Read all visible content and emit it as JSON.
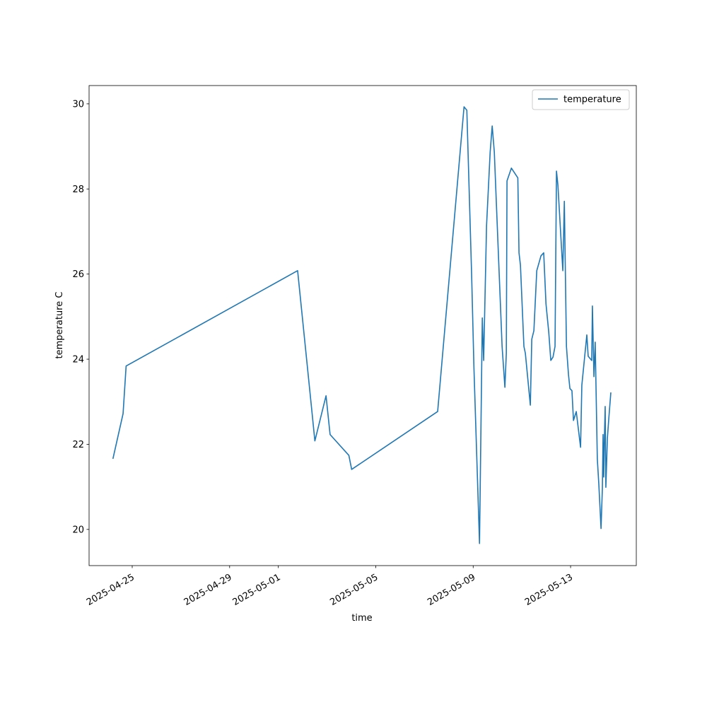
{
  "chart_data": {
    "type": "line",
    "xlabel": "time",
    "ylabel": "temperature C",
    "x": [
      "2025-04-24T05:00",
      "2025-04-24T15:00",
      "2025-04-24T18:00",
      "2025-05-01T19:00",
      "2025-05-02T08:40",
      "2025-05-02T12:00",
      "2025-05-02T23:00",
      "2025-05-03T03:00",
      "2025-05-03T21:30",
      "2025-05-04T00:15",
      "2025-05-07T13:00",
      "2025-05-08T15:00",
      "2025-05-08T17:45",
      "2025-05-08T22:30",
      "2025-05-09T00:45",
      "2025-05-09T06:15",
      "2025-05-09T09:00",
      "2025-05-09T10:20",
      "2025-05-09T13:10",
      "2025-05-09T16:45",
      "2025-05-09T18:45",
      "2025-05-09T20:50",
      "2025-05-10T04:30",
      "2025-05-10T07:15",
      "2025-05-10T08:40",
      "2025-05-10T09:20",
      "2025-05-10T13:40",
      "2025-05-10T20:00",
      "2025-05-10T21:10",
      "2025-05-10T22:35",
      "2025-05-11T02:00",
      "2025-05-11T03:25",
      "2025-05-11T08:20",
      "2025-05-11T09:45",
      "2025-05-11T11:50",
      "2025-05-11T14:40",
      "2025-05-11T18:50",
      "2025-05-11T21:30",
      "2025-05-11T23:45",
      "2025-05-12T02:30",
      "2025-05-12T04:30",
      "2025-05-12T06:40",
      "2025-05-12T08:40",
      "2025-05-12T10:05",
      "2025-05-12T11:30",
      "2025-05-12T16:20",
      "2025-05-12T17:50",
      "2025-05-12T19:55",
      "2025-05-12T21:55",
      "2025-05-12T23:20",
      "2025-05-13T01:20",
      "2025-05-13T02:50",
      "2025-05-13T05:35",
      "2025-05-13T09:50",
      "2025-05-13T11:05",
      "2025-05-13T16:00",
      "2025-05-13T17:20",
      "2025-05-13T20:50",
      "2025-05-13T21:30",
      "2025-05-13T23:00",
      "2025-05-14T00:15",
      "2025-05-14T02:20",
      "2025-05-14T03:50",
      "2025-05-14T06:00",
      "2025-05-14T07:20",
      "2025-05-14T08:00",
      "2025-05-14T08:40",
      "2025-05-14T09:25",
      "2025-05-14T10:05",
      "2025-05-14T10:45",
      "2025-05-14T12:15",
      "2025-05-14T13:40",
      "2025-05-14T15:40"
    ],
    "series": [
      {
        "name": "temperature",
        "color": "#1f77b4",
        "values": [
          21.66,
          22.72,
          23.84,
          26.08,
          22.87,
          22.08,
          23.14,
          22.23,
          21.74,
          21.41,
          22.77,
          29.93,
          29.85,
          25.96,
          23.8,
          19.67,
          24.97,
          23.97,
          27.13,
          28.87,
          29.48,
          28.87,
          24.3,
          23.34,
          24.14,
          28.19,
          28.49,
          28.26,
          26.5,
          26.21,
          24.3,
          24.14,
          22.92,
          24.47,
          24.67,
          26.08,
          26.43,
          26.5,
          25.3,
          24.63,
          23.97,
          24.05,
          24.3,
          28.42,
          28.09,
          26.08,
          27.71,
          24.3,
          23.64,
          23.31,
          23.26,
          22.56,
          22.77,
          21.93,
          23.39,
          24.57,
          24.07,
          23.97,
          25.25,
          23.59,
          24.4,
          21.66,
          21.06,
          20.02,
          20.98,
          22.23,
          21.23,
          22.23,
          22.89,
          20.99,
          22.14,
          22.61,
          23.22
        ]
      }
    ],
    "xlim": [
      "2025-04-23T05:30",
      "2025-05-15T16:45"
    ],
    "xticks": [
      "2025-04-25",
      "2025-04-29",
      "2025-05-01",
      "2025-05-05",
      "2025-05-09",
      "2025-05-13"
    ],
    "ylim": [
      19.15,
      30.43
    ],
    "yticks": [
      20,
      22,
      24,
      26,
      28,
      30
    ],
    "legend": "upper right"
  }
}
